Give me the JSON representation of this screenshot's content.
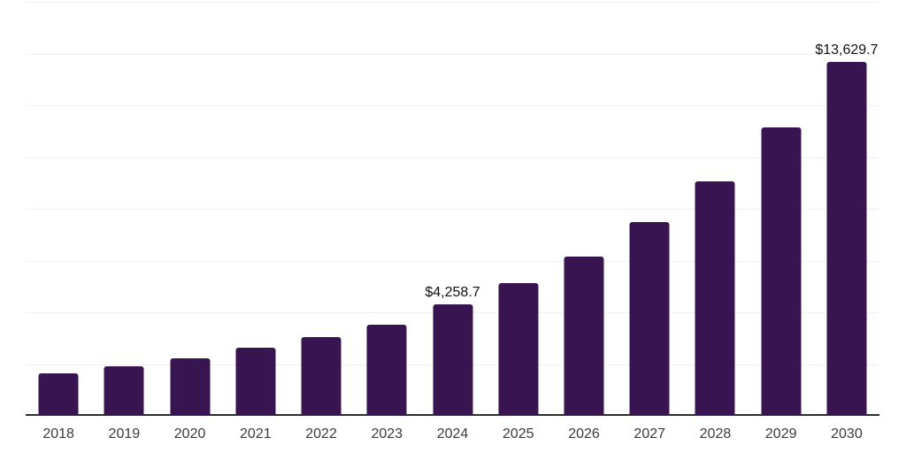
{
  "chart_data": {
    "type": "bar",
    "title": "",
    "xlabel": "",
    "ylabel": "",
    "categories": [
      "2018",
      "2019",
      "2020",
      "2021",
      "2022",
      "2023",
      "2024",
      "2025",
      "2026",
      "2027",
      "2028",
      "2029",
      "2030"
    ],
    "values": [
      1610,
      1880,
      2190,
      2600,
      3010,
      3490,
      4258.7,
      5090,
      6120,
      7450,
      9030,
      11110,
      13629.7
    ],
    "data_labels": {
      "2024": "$4,258.7",
      "2030": "$13,629.7"
    },
    "ylim": [
      0,
      16000
    ],
    "gridline_step": 2000,
    "grid": true,
    "y_tick_labels_visible": false,
    "legend": null
  },
  "colors": {
    "bar": "#381551",
    "axis_line": "#2e2e2e",
    "gridline": "#f2f2f2",
    "tick_label": "#3a3a3a",
    "data_label": "#111111",
    "background": "#ffffff"
  }
}
